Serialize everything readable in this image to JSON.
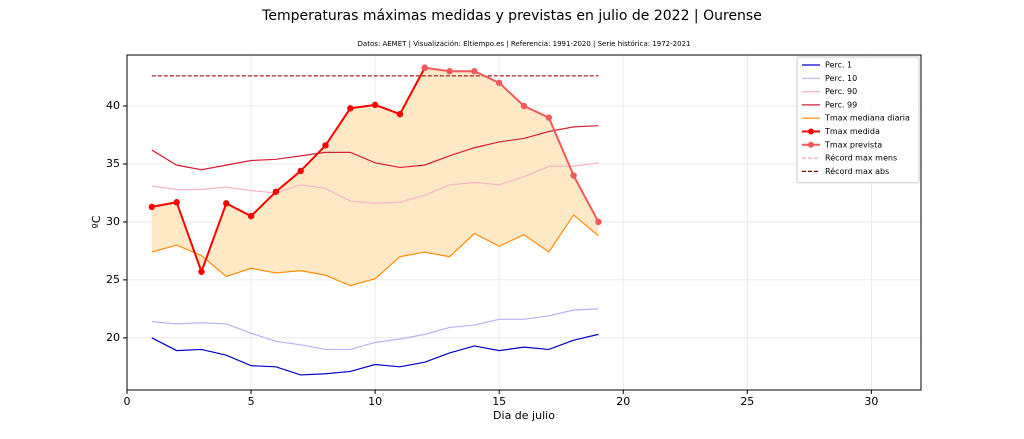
{
  "chart_data": {
    "type": "line",
    "title": "Temperaturas máximas medidas y previstas en julio de 2022 | Ourense",
    "subtitle": "Datos: AEMET | Visualización: Eltiempo.es | Referencia: 1991-2020 | Serie histórica: 1972-2021",
    "x_label": "Dia de julio",
    "y_label": "ºC",
    "x": [
      1,
      2,
      3,
      4,
      5,
      6,
      7,
      8,
      9,
      10,
      11,
      12,
      13,
      14,
      15,
      16,
      17,
      18,
      19
    ],
    "series": [
      {
        "name": "Perc. 1",
        "color": "#0000cd",
        "values": [
          20.0,
          18.9,
          19.0,
          18.5,
          17.6,
          17.5,
          16.8,
          16.9,
          17.1,
          17.7,
          17.5,
          17.9,
          18.7,
          19.3,
          18.9,
          19.2,
          19.0,
          19.8,
          20.3
        ]
      },
      {
        "name": "Perc. 10",
        "color": "#b4b4f0",
        "values": [
          21.4,
          21.2,
          21.3,
          21.2,
          20.4,
          19.7,
          19.4,
          19.0,
          19.0,
          19.6,
          19.9,
          20.3,
          20.9,
          21.1,
          21.6,
          21.6,
          21.9,
          22.4,
          22.5
        ]
      },
      {
        "name": "Perc. 90",
        "color": "#f4b6c2",
        "values": [
          33.1,
          32.8,
          32.8,
          33.0,
          32.7,
          32.5,
          33.2,
          32.9,
          31.8,
          31.6,
          31.7,
          32.3,
          33.2,
          33.4,
          33.2,
          33.9,
          34.8,
          34.8,
          35.1
        ]
      },
      {
        "name": "Perc. 99",
        "color": "#d62035",
        "values": [
          36.2,
          34.9,
          34.5,
          34.9,
          35.3,
          35.4,
          35.7,
          36.0,
          36.0,
          35.1,
          34.7,
          34.9,
          35.7,
          36.4,
          36.9,
          37.2,
          37.8,
          38.2,
          38.3
        ]
      },
      {
        "name": "Tmax mediana diaria",
        "color": "#ff8c00",
        "values": [
          27.4,
          28.0,
          27.1,
          25.3,
          26.0,
          25.6,
          25.8,
          25.4,
          24.5,
          25.1,
          27.0,
          27.4,
          27.0,
          29.0,
          27.9,
          28.9,
          27.4,
          30.6,
          28.8
        ]
      },
      {
        "name": "Tmax medida",
        "color": "#ff0000",
        "markers": true,
        "values": [
          31.3,
          31.7,
          25.7,
          31.6,
          30.5,
          32.6,
          34.4,
          36.6,
          39.8,
          40.1,
          39.3,
          43.3,
          null,
          null,
          null,
          null,
          null,
          null,
          null
        ]
      },
      {
        "name": "Tmax prevista",
        "color": "#f05a5a",
        "markers": true,
        "values": [
          null,
          null,
          null,
          null,
          null,
          null,
          null,
          null,
          null,
          null,
          null,
          43.3,
          43.0,
          43.0,
          42.0,
          40.0,
          39.0,
          34.0,
          30.0
        ]
      }
    ],
    "records": [
      {
        "name": "Récord max mens",
        "color": "#f4a6a6",
        "value": 42.6,
        "xrange": [
          1,
          19
        ]
      },
      {
        "name": "Récord max abs",
        "color": "#8b0000",
        "value": 42.6,
        "xrange": [
          1,
          19
        ]
      }
    ],
    "fill_color": "#fde9c6",
    "xlim": [
      0,
      32
    ],
    "ylim": [
      15.5,
      44.4
    ],
    "xticks": [
      0,
      5,
      10,
      15,
      20,
      25,
      30
    ],
    "yticks": [
      20,
      25,
      30,
      35,
      40
    ],
    "grid": true,
    "legend": "upper right"
  }
}
